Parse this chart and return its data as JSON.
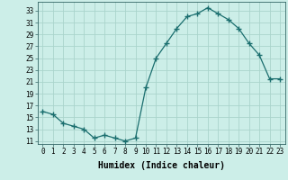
{
  "x": [
    0,
    1,
    2,
    3,
    4,
    5,
    6,
    7,
    8,
    9,
    10,
    11,
    12,
    13,
    14,
    15,
    16,
    17,
    18,
    19,
    20,
    21,
    22,
    23
  ],
  "y": [
    16,
    15.5,
    14,
    13.5,
    13,
    11.5,
    12,
    11.5,
    11,
    11.5,
    20,
    25,
    27.5,
    30,
    32,
    32.5,
    33.5,
    32.5,
    31.5,
    30,
    27.5,
    25.5,
    21.5,
    21.5
  ],
  "line_color": "#1a6e6e",
  "marker": "+",
  "marker_size": 4,
  "marker_lw": 1.0,
  "bg_color": "#cceee8",
  "grid_color": "#aad4cc",
  "xlabel": "Humidex (Indice chaleur)",
  "xlim": [
    -0.5,
    23.5
  ],
  "ylim": [
    10.5,
    34.5
  ],
  "yticks": [
    11,
    13,
    15,
    17,
    19,
    21,
    23,
    25,
    27,
    29,
    31,
    33
  ],
  "xticks": [
    0,
    1,
    2,
    3,
    4,
    5,
    6,
    7,
    8,
    9,
    10,
    11,
    12,
    13,
    14,
    15,
    16,
    17,
    18,
    19,
    20,
    21,
    22,
    23
  ],
  "xtick_labels": [
    "0",
    "1",
    "2",
    "3",
    "4",
    "5",
    "6",
    "7",
    "8",
    "9",
    "10",
    "11",
    "12",
    "13",
    "14",
    "15",
    "16",
    "17",
    "18",
    "19",
    "20",
    "21",
    "22",
    "23"
  ],
  "tick_fontsize": 5.5,
  "xlabel_fontsize": 7.0,
  "linewidth": 0.9
}
